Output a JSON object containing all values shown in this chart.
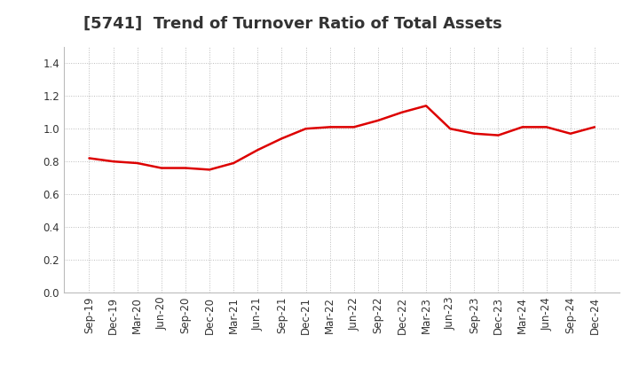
{
  "title": "[5741]  Trend of Turnover Ratio of Total Assets",
  "x_labels": [
    "Sep-19",
    "Dec-19",
    "Mar-20",
    "Jun-20",
    "Sep-20",
    "Dec-20",
    "Mar-21",
    "Jun-21",
    "Sep-21",
    "Dec-21",
    "Mar-22",
    "Jun-22",
    "Sep-22",
    "Dec-22",
    "Mar-23",
    "Jun-23",
    "Sep-23",
    "Dec-23",
    "Mar-24",
    "Jun-24",
    "Sep-24",
    "Dec-24"
  ],
  "y_values": [
    0.82,
    0.8,
    0.79,
    0.76,
    0.76,
    0.75,
    0.79,
    0.87,
    0.94,
    1.0,
    1.01,
    1.01,
    1.05,
    1.1,
    1.14,
    1.0,
    0.97,
    0.96,
    1.01,
    1.01,
    0.97,
    1.01
  ],
  "line_color": "#dd0000",
  "line_width": 1.8,
  "ylim": [
    0.0,
    1.5
  ],
  "yticks": [
    0.0,
    0.2,
    0.4,
    0.6,
    0.8,
    1.0,
    1.2,
    1.4
  ],
  "background_color": "#ffffff",
  "grid_color": "#bbbbbb",
  "title_fontsize": 13,
  "tick_fontsize": 8.5,
  "title_color": "#333333"
}
